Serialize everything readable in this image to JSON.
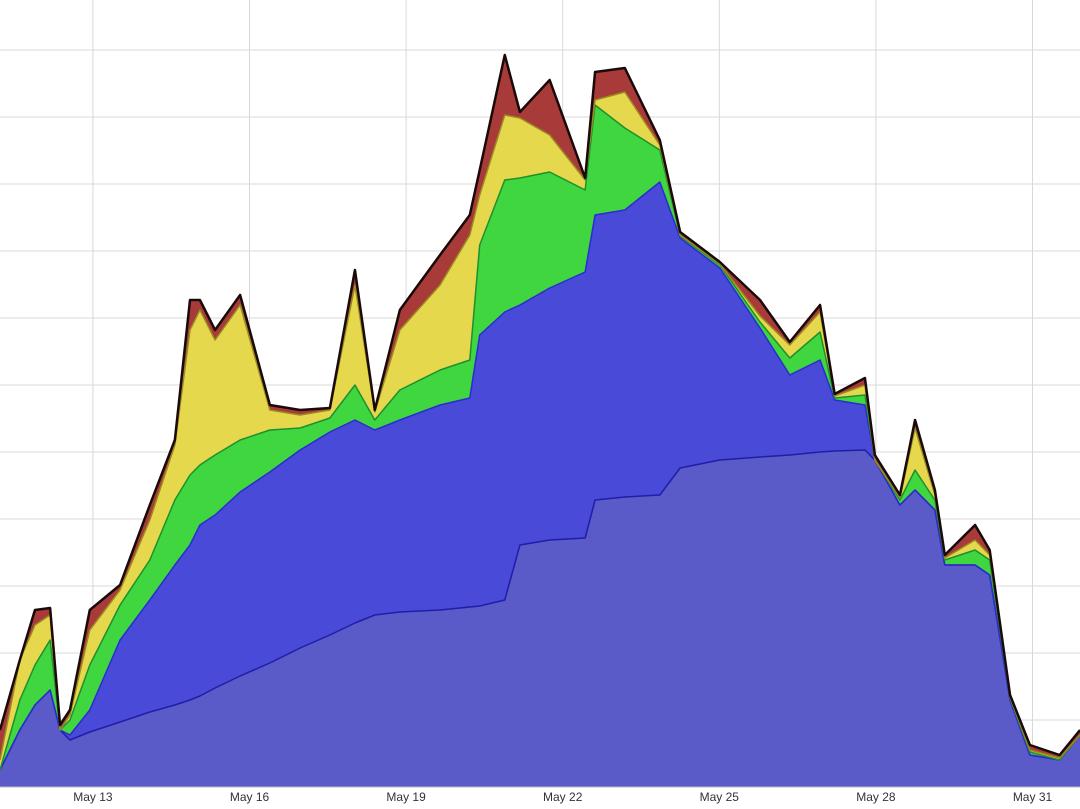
{
  "chart_data": {
    "type": "stacked-area",
    "x": [
      11.22,
      11.6,
      11.89,
      12.18,
      12.37,
      12.56,
      12.94,
      13.52,
      14.09,
      14.57,
      14.86,
      15.05,
      15.34,
      15.82,
      16.39,
      16.97,
      17.54,
      18.02,
      18.4,
      18.88,
      19.65,
      20.22,
      20.41,
      20.89,
      21.18,
      21.75,
      22.43,
      22.62,
      23.19,
      23.86,
      24.25,
      25.01,
      25.78,
      26.35,
      26.93,
      27.21,
      27.79,
      27.98,
      28.46,
      28.75,
      29.13,
      29.32,
      29.9,
      30.18,
      30.57,
      30.95,
      31.52,
      31.91
    ],
    "xlim": [
      11.22,
      31.91
    ],
    "xticks": [
      {
        "value": 13,
        "label": "May 13"
      },
      {
        "value": 16,
        "label": "May 16"
      },
      {
        "value": 19,
        "label": "May 19"
      },
      {
        "value": 22,
        "label": "May 22"
      },
      {
        "value": 25,
        "label": "May 25"
      },
      {
        "value": 28,
        "label": "May 28"
      },
      {
        "value": 31,
        "label": "May 31"
      }
    ],
    "ylim": [
      0,
      787
    ],
    "yticks": [
      67,
      134,
      201,
      268,
      335,
      402,
      469,
      536,
      603,
      670,
      737
    ],
    "grid": true,
    "series": [
      {
        "color": "#5a5ac8",
        "stroke": "#1e1ea8",
        "values": [
          17,
          57,
          82,
          97,
          57,
          47,
          55,
          65,
          75,
          82,
          87,
          91,
          99,
          111,
          124,
          139,
          152,
          164,
          172,
          175,
          177,
          180,
          181,
          187,
          242,
          247,
          249,
          287,
          290,
          292,
          319,
          327,
          330,
          332,
          335,
          336,
          337,
          327,
          282,
          297,
          277,
          222,
          222,
          212,
          87,
          32,
          27,
          52
        ]
      },
      {
        "color": "#4a4ad8",
        "stroke": "#2b2bd0",
        "values": [
          0,
          0,
          0,
          0,
          0,
          5,
          22,
          82,
          112,
          140,
          155,
          171,
          173,
          184,
          191,
          198,
          203,
          203,
          185,
          192,
          205,
          209,
          271,
          288,
          240,
          252,
          266,
          285,
          287,
          313,
          230,
          192,
          129,
          80,
          92,
          51,
          45,
          0,
          0,
          0,
          0,
          0,
          0,
          0,
          0,
          0,
          0,
          0
        ]
      },
      {
        "color": "#3fd63f",
        "stroke": "#1f8f2f",
        "values": [
          0,
          30,
          40,
          50,
          0,
          15,
          45,
          35,
          40,
          65,
          70,
          60,
          60,
          52,
          42,
          22,
          14,
          35,
          10,
          30,
          35,
          38,
          90,
          132,
          127,
          116,
          82,
          110,
          82,
          32,
          2,
          3,
          6,
          17,
          28,
          2,
          10,
          0,
          5,
          20,
          10,
          5,
          15,
          15,
          2,
          3,
          0,
          0
        ]
      },
      {
        "color": "#e6d84c",
        "stroke": "#9a8a20",
        "values": [
          10,
          40,
          40,
          25,
          0,
          5,
          35,
          15,
          40,
          55,
          145,
          155,
          115,
          135,
          20,
          13,
          8,
          100,
          8,
          60,
          85,
          125,
          50,
          65,
          60,
          37,
          10,
          5,
          36,
          5,
          1,
          1,
          6,
          13,
          20,
          2,
          10,
          0,
          2,
          42,
          5,
          2,
          10,
          5,
          1,
          2,
          2,
          0
        ]
      },
      {
        "color": "#a83a3a",
        "stroke": "#1a0a0a",
        "values": [
          30,
          0,
          15,
          7,
          5,
          5,
          20,
          5,
          15,
          5,
          30,
          10,
          10,
          10,
          5,
          5,
          2,
          15,
          2,
          20,
          30,
          20,
          25,
          60,
          6,
          55,
          2,
          28,
          24,
          5,
          3,
          2,
          16,
          3,
          7,
          2,
          7,
          5,
          3,
          8,
          5,
          3,
          15,
          5,
          2,
          5,
          3,
          5
        ]
      }
    ]
  }
}
